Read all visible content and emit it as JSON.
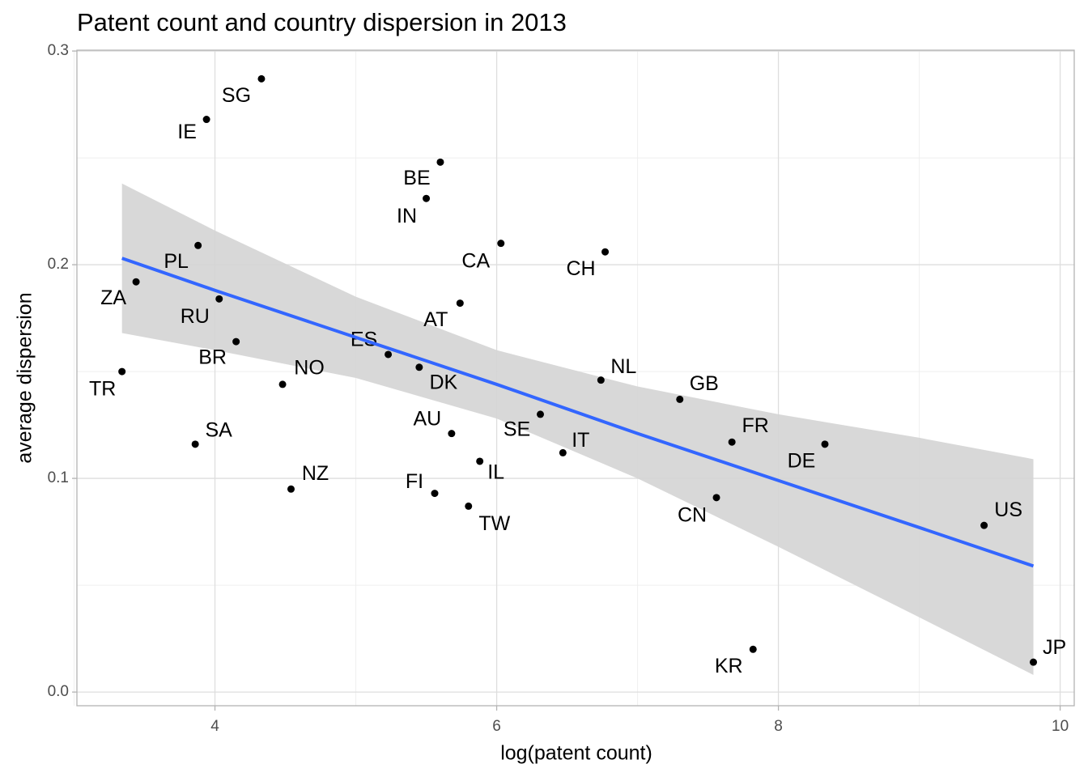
{
  "chart_data": {
    "type": "scatter",
    "title": "Patent count and country dispersion in 2013",
    "x_label": "log(patent count)",
    "y_label": "average dispersion",
    "xlim": [
      3.02,
      10.1
    ],
    "ylim": [
      -0.0064,
      0.3004
    ],
    "xticks": [
      4,
      6,
      8,
      10
    ],
    "yticks": [
      {
        "value": 0,
        "label": "0.0"
      },
      0.1,
      0.2,
      0.3
    ],
    "minor_xticks": [
      3,
      5,
      7,
      9
    ],
    "minor_yticks": [
      0.05,
      0.15,
      0.25
    ],
    "grid": true,
    "points": {
      "color": "#000000",
      "labels": [
        "SG",
        "IE",
        "BE",
        "IN",
        "CA",
        "CH",
        "PL",
        "ZA",
        "RU",
        "AT",
        "BR",
        "ES",
        "DK",
        "TR",
        "NO",
        "NL",
        "GB",
        "SE",
        "AU",
        "SA",
        "FR",
        "DE",
        "IT",
        "IL",
        "NZ",
        "FI",
        "TW",
        "CN",
        "US",
        "KR",
        "JP"
      ],
      "x": [
        4.33,
        3.94,
        5.6,
        5.5,
        6.03,
        6.77,
        3.88,
        3.44,
        4.03,
        5.74,
        4.15,
        5.23,
        5.45,
        3.34,
        4.48,
        6.74,
        7.3,
        6.31,
        5.68,
        3.86,
        7.67,
        8.33,
        6.47,
        5.88,
        4.54,
        5.56,
        5.8,
        7.56,
        9.46,
        7.82,
        9.81
      ],
      "values": [
        0.287,
        0.268,
        0.248,
        0.231,
        0.21,
        0.206,
        0.209,
        0.192,
        0.184,
        0.182,
        0.164,
        0.158,
        0.152,
        0.15,
        0.144,
        0.146,
        0.137,
        0.13,
        0.121,
        0.116,
        0.117,
        0.116,
        0.112,
        0.108,
        0.095,
        0.093,
        0.087,
        0.091,
        0.078,
        0.02,
        0.014
      ]
    },
    "fit": {
      "color": "#3366ff",
      "band_color": "#d4d4d4",
      "x": [
        3.34,
        4,
        5,
        6,
        7,
        8,
        9,
        9.81
      ],
      "values": [
        0.203,
        0.188,
        0.166,
        0.144,
        0.121,
        0.099,
        0.077,
        0.059
      ],
      "lower": [
        0.168,
        0.16,
        0.147,
        0.128,
        0.1,
        0.068,
        0.035,
        0.008
      ],
      "upper": [
        0.238,
        0.216,
        0.185,
        0.16,
        0.143,
        0.13,
        0.119,
        0.109
      ]
    }
  }
}
